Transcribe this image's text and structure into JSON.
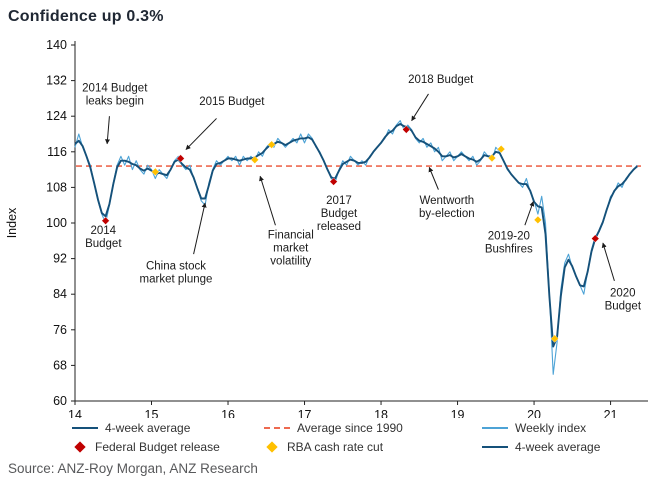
{
  "title": "Confidence up 0.3%",
  "source": "Source: ANZ-Roy Morgan, ANZ Research",
  "colors": {
    "weekly": "#4da3d6",
    "four_week": "#15517a",
    "average": "#ee6a50",
    "budget_marker": "#c00000",
    "rba_marker": "#ffc000",
    "axis": "#222222",
    "annotation_text": "#1b1b1b"
  },
  "legend": {
    "rows": [
      [
        {
          "type": "line",
          "color": "#15517a",
          "label": "4-week average"
        },
        {
          "type": "dash",
          "color": "#ee6a50",
          "label": "Average since 1990"
        },
        {
          "type": "line",
          "color": "#4da3d6",
          "label": "Weekly index"
        }
      ],
      [
        {
          "type": "diamond",
          "color": "#c00000",
          "label": "Federal Budget release"
        },
        {
          "type": "diamond",
          "color": "#ffc000",
          "label": "RBA cash rate cut"
        },
        {
          "type": "line",
          "color": "#15517a",
          "label": "4-week average"
        }
      ]
    ]
  },
  "chart_data": {
    "type": "line",
    "title": "Confidence up 0.3%",
    "xlabel": "",
    "ylabel": "Index",
    "xlim": [
      14,
      21.45
    ],
    "ylim": [
      60,
      140
    ],
    "xticks": [
      14,
      15,
      16,
      17,
      18,
      19,
      20,
      21
    ],
    "yticks": [
      60,
      68,
      76,
      84,
      92,
      100,
      108,
      116,
      124,
      132,
      140
    ],
    "grid": false,
    "average_since_1990": 112.8,
    "x_start": 14,
    "x_step": 0.05,
    "series": [
      {
        "name": "Weekly index",
        "values": [
          117,
          120,
          117,
          115,
          113,
          109,
          105,
          102,
          100,
          104,
          109,
          113,
          115,
          113,
          115,
          112,
          114,
          112,
          111,
          113,
          112,
          110,
          112,
          111,
          110,
          112,
          114,
          115,
          113,
          112,
          113,
          110,
          108,
          105,
          104,
          109,
          112,
          114,
          113,
          114,
          115,
          114,
          115,
          113,
          115,
          114,
          115,
          114,
          116,
          115,
          117,
          118,
          117,
          119,
          118,
          117,
          118,
          119,
          118,
          120,
          118,
          120,
          119,
          117,
          116,
          114,
          112,
          110,
          109,
          112,
          114,
          113,
          115,
          114,
          113,
          114,
          113,
          115,
          116,
          117,
          118,
          119,
          121,
          120,
          122,
          123,
          121,
          122,
          121,
          119,
          118,
          119,
          117,
          118,
          116,
          117,
          114,
          115,
          116,
          114,
          115,
          116,
          115,
          114,
          115,
          113,
          114,
          116,
          115,
          114,
          117,
          116,
          114,
          112,
          111,
          110,
          109,
          108,
          110,
          107,
          105,
          102,
          106,
          100,
          84,
          66,
          73,
          85,
          91,
          93,
          90,
          88,
          86,
          84,
          89,
          94,
          97,
          98,
          100,
          103,
          106,
          107,
          109,
          108,
          110,
          111,
          112,
          113
        ]
      },
      {
        "name": "4-week average",
        "derived": "smoothed from Weekly index"
      }
    ],
    "markers": {
      "federal_budget_release": {
        "label": "Federal Budget release",
        "points": [
          [
            14.4,
            100.5
          ],
          [
            15.38,
            114.5
          ],
          [
            17.38,
            109.3
          ],
          [
            18.33,
            121.0
          ],
          [
            20.8,
            96.5
          ]
        ]
      },
      "rba_cash_rate_cut": {
        "label": "RBA cash rate cut",
        "points": [
          [
            15.05,
            111.5
          ],
          [
            16.35,
            114.2
          ],
          [
            16.57,
            117.6
          ],
          [
            19.45,
            114.6
          ],
          [
            19.57,
            116.6
          ],
          [
            20.05,
            100.7
          ],
          [
            20.27,
            74.0
          ]
        ]
      }
    },
    "annotations": [
      {
        "id": "budget-leaks-2014",
        "lines": [
          "2014 Budget",
          "leaks begin"
        ],
        "x": 14.52,
        "y": 129.5,
        "arrow": {
          "from": [
            14.45,
            124.0
          ],
          "to": [
            14.42,
            117.8
          ]
        }
      },
      {
        "id": "budget-2015",
        "lines": [
          "2015 Budget"
        ],
        "x": 16.05,
        "y": 126.5,
        "arrow": {
          "from": [
            15.85,
            123.5
          ],
          "to": [
            15.45,
            116.5
          ]
        }
      },
      {
        "id": "budget-2018",
        "lines": [
          "2018 Budget"
        ],
        "x": 18.78,
        "y": 131.5,
        "arrow": {
          "from": [
            18.62,
            129.0
          ],
          "to": [
            18.4,
            123.0
          ]
        }
      },
      {
        "id": "budget-2014",
        "lines": [
          "2014",
          "Budget"
        ],
        "x": 14.37,
        "y": 97.5,
        "arrow": null
      },
      {
        "id": "china-plunge",
        "lines": [
          "China stock",
          "market plunge"
        ],
        "x": 15.32,
        "y": 89.5,
        "arrow": {
          "from": [
            15.55,
            93.0
          ],
          "to": [
            15.7,
            104.5
          ]
        }
      },
      {
        "id": "financial-volatility",
        "lines": [
          "Financial",
          "market",
          "volatility"
        ],
        "x": 16.82,
        "y": 96.5,
        "arrow": {
          "from": [
            16.62,
            99.5
          ],
          "to": [
            16.42,
            110.5
          ]
        }
      },
      {
        "id": "budget-2017",
        "lines": [
          "2017",
          "Budget",
          "released"
        ],
        "x": 17.45,
        "y": 104.3,
        "arrow": null
      },
      {
        "id": "wentworth",
        "lines": [
          "Wentworth",
          "by-election"
        ],
        "x": 18.86,
        "y": 104.3,
        "arrow": {
          "from": [
            18.75,
            107.5
          ],
          "to": [
            18.63,
            112.5
          ]
        }
      },
      {
        "id": "bushfires",
        "lines": [
          "2019-20",
          "Bushfires"
        ],
        "x": 19.67,
        "y": 96.3,
        "arrow": {
          "from": [
            19.88,
            99.5
          ],
          "to": [
            19.99,
            104.8
          ]
        }
      },
      {
        "id": "budget-2020",
        "lines": [
          "2020",
          "Budget"
        ],
        "x": 21.16,
        "y": 83.5,
        "arrow": {
          "from": [
            21.05,
            87.0
          ],
          "to": [
            20.9,
            95.5
          ]
        }
      }
    ]
  }
}
